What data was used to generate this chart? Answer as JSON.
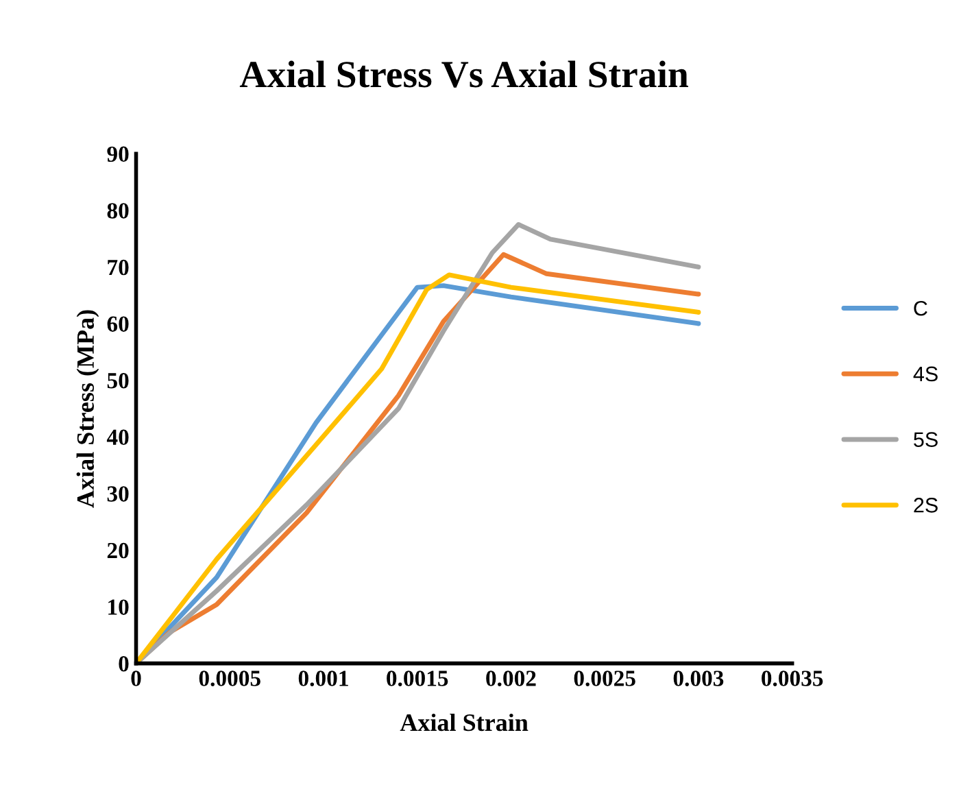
{
  "chart_data": {
    "type": "line",
    "title": "Axial Stress Vs Axial Strain",
    "xlabel": "Axial Strain",
    "ylabel": "Axial Stress (MPa)",
    "xlim": [
      0,
      0.0035
    ],
    "xticks": [
      0,
      0.0005,
      0.001,
      0.0015,
      0.002,
      0.0025,
      0.003,
      0.0035
    ],
    "ylim": [
      0,
      90
    ],
    "yticks": [
      0,
      10,
      20,
      30,
      40,
      50,
      60,
      70,
      80,
      90
    ],
    "grid": false,
    "legend": "right",
    "marker": "none",
    "line_style": "solid",
    "series": [
      {
        "name": "C",
        "color": "#5b9bd5",
        "x": [
          0,
          0.00043,
          0.00096,
          0.00131,
          0.0015,
          0.00164,
          0.002,
          0.003
        ],
        "values": [
          0,
          15.2,
          42.5,
          58,
          66.4,
          66.7,
          64.7,
          60
        ]
      },
      {
        "name": "4S",
        "color": "#ed7d31",
        "x": [
          0,
          0.00018,
          0.00043,
          0.00091,
          0.0014,
          0.00164,
          0.00196,
          0.00219,
          0.003
        ],
        "values": [
          0,
          5.5,
          10.4,
          26.6,
          47.3,
          60.4,
          72.2,
          68.8,
          65.2
        ]
      },
      {
        "name": "5S",
        "color": "#a5a5a5",
        "x": [
          0,
          0.00043,
          0.00091,
          0.0014,
          0.00164,
          0.0019,
          0.00204,
          0.00221,
          0.003
        ],
        "values": [
          0,
          12.8,
          28,
          45,
          58.7,
          72.5,
          77.5,
          74.9,
          70
        ]
      },
      {
        "name": "2S",
        "color": "#ffc000",
        "x": [
          0,
          0.00043,
          0.00096,
          0.00131,
          0.00155,
          0.00167,
          0.002,
          0.003
        ],
        "values": [
          0,
          18.4,
          38.6,
          52,
          66,
          68.6,
          66.4,
          62
        ]
      }
    ]
  }
}
